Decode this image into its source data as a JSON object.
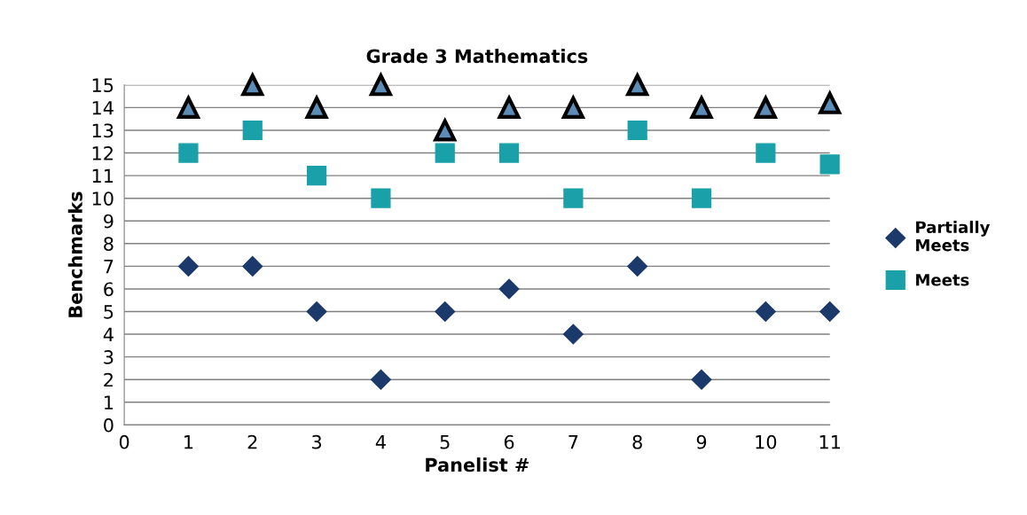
{
  "chart_data": {
    "type": "scatter",
    "title": "Grade 3 Mathematics",
    "xlabel": "Panelist #",
    "ylabel": "Benchmarks",
    "x": [
      1,
      2,
      3,
      4,
      5,
      6,
      7,
      8,
      9,
      10,
      11
    ],
    "series": [
      {
        "name": "Partially Meets",
        "color": "#1b3a6b",
        "marker": "diamond",
        "values": [
          7,
          7,
          5,
          2,
          5,
          6,
          4,
          7,
          2,
          5,
          5
        ]
      },
      {
        "name": "Meets",
        "color": "#1aa0a8",
        "marker": "square",
        "values": [
          12,
          13,
          11,
          10,
          12,
          12,
          10,
          13,
          10,
          12,
          11.5
        ]
      },
      {
        "color": "#5b8db8",
        "marker": "triangle",
        "values": [
          14,
          15,
          14,
          15,
          13,
          14,
          14,
          15,
          14,
          14,
          14.2
        ]
      }
    ],
    "xlim": [
      0,
      11
    ],
    "xticks": [
      0,
      1,
      2,
      3,
      4,
      5,
      6,
      7,
      8,
      9,
      10,
      11
    ],
    "ylim": [
      0,
      15
    ],
    "yticks": [
      0,
      1,
      2,
      3,
      4,
      5,
      6,
      7,
      8,
      9,
      10,
      11,
      12,
      13,
      14,
      15
    ],
    "grid": "y",
    "legend": "right"
  }
}
